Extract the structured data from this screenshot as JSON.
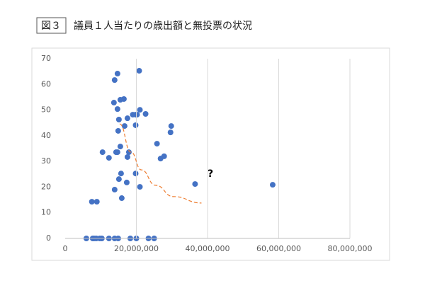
{
  "chart_data": {
    "type": "scatter",
    "figure_label": "図３",
    "title": "議員１人当たりの歳出額と無投票の状況",
    "annotation": "?",
    "series": [
      {
        "color": "#4472c4",
        "x": [
          5950000,
          7740000,
          8130000,
          8730000,
          9720000,
          10300000,
          12300000,
          13900000,
          14900000,
          18300000,
          20000000,
          23400000,
          25000000,
          7500000,
          8900000,
          14700000,
          13900000,
          20800000,
          16500000,
          15500000,
          13700000,
          21000000,
          14700000,
          19800000,
          19000000,
          20200000,
          17500000,
          15100000,
          22600000,
          16700000,
          19800000,
          14900000,
          29800000,
          29600000,
          25800000,
          10500000,
          14700000,
          15500000,
          17900000,
          14300000,
          12300000,
          17500000,
          26800000,
          27800000,
          15700000,
          19800000,
          15100000,
          17300000,
          21000000,
          13900000,
          15900000,
          36500000,
          58300000
        ],
        "values": [
          0,
          0,
          0,
          0,
          0,
          0,
          0,
          0,
          0,
          0,
          0,
          0,
          0,
          14.3,
          14.3,
          64.2,
          61.7,
          65.3,
          54.3,
          54.0,
          52.9,
          50.1,
          50.4,
          48.2,
          48.2,
          48.2,
          46.8,
          46.3,
          48.5,
          43.8,
          44.1,
          41.9,
          43.8,
          41.3,
          36.9,
          33.6,
          33.6,
          35.8,
          33.6,
          33.6,
          31.4,
          31.7,
          31.1,
          32.0,
          25.3,
          25.3,
          23.1,
          21.8,
          20.1,
          19.0,
          15.7,
          21.2,
          20.9
        ]
      }
    ],
    "trendline": {
      "color": "#ed7d31",
      "x": [
        15300000,
        18500000,
        21400000,
        25400000,
        30400000,
        38300000
      ],
      "values": [
        44.6,
        33.6,
        26.7,
        20.7,
        16.3,
        13.8
      ]
    },
    "xlim": [
      0,
      80000000
    ],
    "xticks": [
      0,
      {
        "value": 20000000,
        "label": "20,000,000"
      },
      {
        "value": 40000000,
        "label": "40,000,000"
      },
      {
        "value": 60000000,
        "label": "60,000,000"
      },
      {
        "value": 80000000,
        "label": "80,000,000"
      }
    ],
    "ylim": [
      0,
      70
    ],
    "yticks": [
      0,
      10,
      20,
      30,
      40,
      50,
      60,
      70
    ],
    "grid": "x"
  }
}
